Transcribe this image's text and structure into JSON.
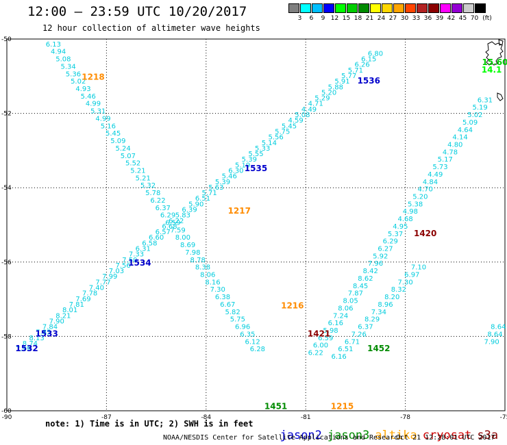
{
  "header": {
    "title": "12:00 – 23:59 UTC 10/20/2017",
    "subtitle": "12 hour collection of altimeter wave heights"
  },
  "legend": {
    "unit": "(ft)",
    "colors": [
      "#7f7f7f",
      "#00ffff",
      "#00bfff",
      "#0000ff",
      "#00ff00",
      "#00cd00",
      "#008b00",
      "#ffff00",
      "#ffd700",
      "#ffa500",
      "#ff4500",
      "#b22222",
      "#8b0000",
      "#ff00ff",
      "#9400d3",
      "#cccccc",
      "#000000"
    ],
    "labels": [
      "3",
      "6",
      "9",
      "12",
      "15",
      "18",
      "21",
      "24",
      "27",
      "30",
      "33",
      "36",
      "39",
      "42",
      "45",
      "70"
    ]
  },
  "chart_data": {
    "type": "map",
    "x_range": [
      -90,
      -75
    ],
    "y_range": [
      -60,
      -50
    ],
    "xticks": [
      "-90",
      "-87",
      "-84",
      "-81",
      "-78",
      "-75"
    ],
    "yticks": [
      "-50",
      "-52",
      "-54",
      "-56",
      "-58",
      "-60"
    ],
    "grid": true,
    "track_color": "#00ccdd",
    "tracks": [
      {
        "name": "A",
        "points": [
          [
            -88.6,
            -50.2,
            "6.13"
          ],
          [
            -88.45,
            -50.4,
            "4.94"
          ],
          [
            -88.3,
            -50.6,
            "5.08"
          ],
          [
            -88.15,
            -50.8,
            "5.34"
          ],
          [
            -88.0,
            -51.0,
            "5.36"
          ],
          [
            -87.85,
            -51.2,
            "5.02"
          ],
          [
            -87.7,
            -51.4,
            "4.93"
          ],
          [
            -87.55,
            -51.6,
            "5.46"
          ],
          [
            -87.4,
            -51.8,
            "4.99"
          ],
          [
            -87.25,
            -52.0,
            "5.31"
          ],
          [
            -87.1,
            -52.2,
            "4.99"
          ],
          [
            -86.95,
            -52.4,
            "5.16"
          ],
          [
            -86.8,
            -52.6,
            "5.45"
          ],
          [
            -86.65,
            -52.8,
            "5.09"
          ],
          [
            -86.5,
            -53.0,
            "5.24"
          ],
          [
            -86.35,
            -53.2,
            "5.07"
          ],
          [
            -86.2,
            -53.4,
            "5.52"
          ],
          [
            -86.05,
            -53.6,
            "5.21"
          ],
          [
            -85.9,
            -53.8,
            "5.21"
          ],
          [
            -85.75,
            -54.0,
            "5.32"
          ],
          [
            -85.6,
            -54.2,
            "5.78"
          ],
          [
            -85.45,
            -54.4,
            "6.22"
          ],
          [
            -85.3,
            -54.6,
            "6.37"
          ],
          [
            -85.15,
            -54.8,
            "6.29"
          ],
          [
            -85.0,
            -55.0,
            "6.59"
          ],
          [
            -84.85,
            -55.2,
            "7.59"
          ],
          [
            -84.7,
            -55.4,
            "8.00"
          ],
          [
            -84.55,
            -55.6,
            "8.69"
          ],
          [
            -84.4,
            -55.8,
            "7.98"
          ],
          [
            -84.25,
            -56.0,
            "8.78"
          ],
          [
            -84.1,
            -56.2,
            "8.38"
          ],
          [
            -83.95,
            -56.4,
            "8.06"
          ],
          [
            -83.8,
            -56.6,
            "8.16"
          ],
          [
            -83.65,
            -56.8,
            "7.30"
          ],
          [
            -83.5,
            -57.0,
            "6.38"
          ],
          [
            -83.35,
            -57.2,
            "6.67"
          ],
          [
            -83.2,
            -57.4,
            "5.82"
          ],
          [
            -83.05,
            -57.6,
            "5.75"
          ],
          [
            -82.9,
            -57.8,
            "6.96"
          ],
          [
            -82.75,
            -58.0,
            "6.35"
          ],
          [
            -82.6,
            -58.2,
            "6.12"
          ],
          [
            -82.45,
            -58.4,
            "6.28"
          ]
        ]
      },
      {
        "name": "B",
        "points": [
          [
            -89.5,
            -58.4,
            "7.99"
          ],
          [
            -89.3,
            -58.25,
            "8.74"
          ],
          [
            -89.1,
            -58.1,
            "8.13"
          ],
          [
            -88.9,
            -57.95,
            "7.85"
          ],
          [
            -88.7,
            -57.8,
            "7.84"
          ],
          [
            -88.5,
            -57.65,
            "7.90"
          ],
          [
            -88.3,
            -57.5,
            "8.21"
          ],
          [
            -88.1,
            -57.35,
            "8.01"
          ],
          [
            -87.9,
            -57.2,
            "7.81"
          ],
          [
            -87.7,
            -57.05,
            "7.69"
          ],
          [
            -87.5,
            -56.9,
            "7.78"
          ],
          [
            -87.3,
            -56.75,
            "7.40"
          ],
          [
            -87.1,
            -56.6,
            "7.77"
          ],
          [
            -86.9,
            -56.45,
            "7.99"
          ],
          [
            -86.7,
            -56.3,
            "7.03"
          ],
          [
            -86.5,
            -56.15,
            "7.56"
          ],
          [
            -86.3,
            -56.0,
            "7.50"
          ],
          [
            -86.1,
            -55.85,
            "7.33"
          ],
          [
            -85.9,
            -55.7,
            "6.31"
          ],
          [
            -85.7,
            -55.55,
            "6.58"
          ],
          [
            -85.5,
            -55.4,
            "6.60"
          ],
          [
            -85.3,
            -55.25,
            "6.57"
          ],
          [
            -85.1,
            -55.1,
            "6.68"
          ],
          [
            -84.9,
            -54.95,
            "6.22"
          ],
          [
            -84.7,
            -54.8,
            "5.83"
          ],
          [
            -84.5,
            -54.65,
            "6.39"
          ],
          [
            -84.3,
            -54.5,
            "5.90"
          ],
          [
            -84.1,
            -54.35,
            "6.51"
          ],
          [
            -83.9,
            -54.2,
            "5.71"
          ],
          [
            -83.7,
            -54.05,
            "5.63"
          ],
          [
            -83.5,
            -53.9,
            "5.39"
          ],
          [
            -83.3,
            -53.75,
            "5.46"
          ],
          [
            -83.1,
            -53.6,
            "6.30"
          ],
          [
            -82.9,
            -53.45,
            "5.19"
          ],
          [
            -82.7,
            -53.3,
            "5.39"
          ],
          [
            -82.5,
            -53.15,
            "5.55"
          ],
          [
            -82.3,
            -53.0,
            "5.33"
          ],
          [
            -82.1,
            -52.85,
            "5.14"
          ],
          [
            -81.9,
            -52.7,
            "5.56"
          ],
          [
            -81.7,
            -52.55,
            "5.75"
          ],
          [
            -81.5,
            -52.4,
            "5.45"
          ],
          [
            -81.3,
            -52.25,
            "4.59"
          ],
          [
            -81.1,
            -52.1,
            "5.08"
          ],
          [
            -80.9,
            -51.95,
            "4.49"
          ],
          [
            -80.7,
            -51.8,
            "4.71"
          ],
          [
            -80.5,
            -51.65,
            "5.29"
          ],
          [
            -80.3,
            -51.5,
            "5.20"
          ],
          [
            -80.1,
            -51.35,
            "5.88"
          ],
          [
            -79.9,
            -51.2,
            "5.91"
          ],
          [
            -79.7,
            -51.05,
            "5.77"
          ],
          [
            -79.5,
            -50.9,
            "5.71"
          ],
          [
            -79.3,
            -50.75,
            "6.26"
          ],
          [
            -79.1,
            -50.6,
            "6.15"
          ],
          [
            -78.9,
            -50.45,
            "6.80"
          ]
        ]
      },
      {
        "name": "C",
        "points": [
          [
            -75.6,
            -51.7,
            "6.31"
          ],
          [
            -75.75,
            -51.9,
            "5.19"
          ],
          [
            -75.9,
            -52.1,
            "5.02"
          ],
          [
            -76.05,
            -52.3,
            "5.09"
          ],
          [
            -76.2,
            -52.5,
            "4.64"
          ],
          [
            -76.35,
            -52.7,
            "4.14"
          ],
          [
            -76.5,
            -52.9,
            "4.80"
          ],
          [
            -76.65,
            -53.1,
            "4.78"
          ],
          [
            -76.8,
            -53.3,
            "5.17"
          ],
          [
            -76.95,
            -53.5,
            "5.73"
          ],
          [
            -77.1,
            -53.7,
            "4.49"
          ],
          [
            -77.25,
            -53.9,
            "4.84"
          ],
          [
            -77.4,
            -54.1,
            "4.70"
          ],
          [
            -77.55,
            -54.3,
            "5.20"
          ],
          [
            -77.7,
            -54.5,
            "5.38"
          ],
          [
            -77.85,
            -54.7,
            "4.98"
          ],
          [
            -78.0,
            -54.9,
            "4.68"
          ],
          [
            -78.15,
            -55.1,
            "4.95"
          ],
          [
            -78.3,
            -55.3,
            "5.37"
          ],
          [
            -78.45,
            -55.5,
            "6.29"
          ],
          [
            -78.6,
            -55.7,
            "6.27"
          ],
          [
            -78.75,
            -55.9,
            "5.92"
          ],
          [
            -78.9,
            -56.1,
            "7.96"
          ],
          [
            -79.05,
            -56.3,
            "8.42"
          ],
          [
            -79.2,
            -56.5,
            "8.62"
          ],
          [
            -79.35,
            -56.7,
            "8.45"
          ],
          [
            -79.5,
            -56.9,
            "7.87"
          ],
          [
            -79.65,
            -57.1,
            "8.05"
          ],
          [
            -79.8,
            -57.3,
            "8.06"
          ],
          [
            -79.95,
            -57.5,
            "7.24"
          ],
          [
            -80.1,
            -57.7,
            "6.16"
          ],
          [
            -80.25,
            -57.9,
            "5.98"
          ],
          [
            -80.4,
            -58.1,
            "6.59"
          ],
          [
            -80.55,
            -58.3,
            "6.00"
          ],
          [
            -80.7,
            -58.5,
            "6.22"
          ]
        ]
      },
      {
        "name": "D",
        "points": [
          [
            -80.0,
            -58.6,
            "6.16"
          ],
          [
            -79.8,
            -58.4,
            "6.51"
          ],
          [
            -79.6,
            -58.2,
            "6.71"
          ],
          [
            -79.4,
            -58.0,
            "7.26"
          ],
          [
            -79.2,
            -57.8,
            "6.37"
          ],
          [
            -79.0,
            -57.6,
            "8.29"
          ],
          [
            -78.8,
            -57.4,
            "7.34"
          ],
          [
            -78.6,
            -57.2,
            "8.96"
          ],
          [
            -78.4,
            -57.0,
            "8.20"
          ],
          [
            -78.2,
            -56.8,
            "8.32"
          ],
          [
            -78.0,
            -56.6,
            "7.30"
          ],
          [
            -77.8,
            -56.4,
            "6.97"
          ],
          [
            -77.6,
            -56.2,
            "7.10"
          ]
        ]
      },
      {
        "name": "E",
        "points": [
          [
            -75.2,
            -57.8,
            "8.64"
          ],
          [
            -75.3,
            -58.0,
            "8.64"
          ],
          [
            -75.4,
            -58.2,
            "7.90"
          ]
        ]
      }
    ],
    "pass_labels": [
      {
        "text": "1218",
        "lon": -87.4,
        "lat": -51.1,
        "color": "#ff8c00"
      },
      {
        "text": "1536",
        "lon": -79.1,
        "lat": -51.2,
        "color": "#0000cc"
      },
      {
        "text": "1535",
        "lon": -82.5,
        "lat": -53.55,
        "color": "#0000cc"
      },
      {
        "text": "1217",
        "lon": -83.0,
        "lat": -54.7,
        "color": "#ff8c00"
      },
      {
        "text": "1420",
        "lon": -77.4,
        "lat": -55.3,
        "color": "#8b0000"
      },
      {
        "text": "1534",
        "lon": -86.0,
        "lat": -56.1,
        "color": "#0000cc"
      },
      {
        "text": "1216",
        "lon": -81.4,
        "lat": -57.25,
        "color": "#ff8c00"
      },
      {
        "text": "1533",
        "lon": -88.8,
        "lat": -58.0,
        "color": "#0000cc"
      },
      {
        "text": "1532",
        "lon": -89.4,
        "lat": -58.4,
        "color": "#0000cc"
      },
      {
        "text": "1421",
        "lon": -80.6,
        "lat": -58.0,
        "color": "#8b0000"
      },
      {
        "text": "1452",
        "lon": -78.8,
        "lat": -58.4,
        "color": "#008b00"
      },
      {
        "text": "1451",
        "lon": -81.9,
        "lat": -59.95,
        "color": "#008b00"
      },
      {
        "text": "1215",
        "lon": -79.9,
        "lat": -59.95,
        "color": "#ff8c00"
      },
      {
        "text": "15.60",
        "lon": -75.3,
        "lat": -50.7,
        "color": "#00cd00"
      },
      {
        "text": "14.1",
        "lon": -75.4,
        "lat": -50.9,
        "color": "#00ff00"
      }
    ]
  },
  "footer": {
    "note": "note: 1) Time is in UTC; 2) SWH is in feet",
    "satellites": [
      {
        "name": "jason2",
        "color": "#0000cc"
      },
      {
        "name": "jason3",
        "color": "#008b00"
      },
      {
        "name": "altika",
        "color": "#ffa500"
      },
      {
        "name": "cryosat",
        "color": "#cc0000"
      },
      {
        "name": "s3a",
        "color": "#8b0000"
      }
    ],
    "credit": "NOAA/NESDIS Center for Satellite Applications and Research",
    "timestamp": "Oct 21 12:28:01 UTC 2017"
  }
}
